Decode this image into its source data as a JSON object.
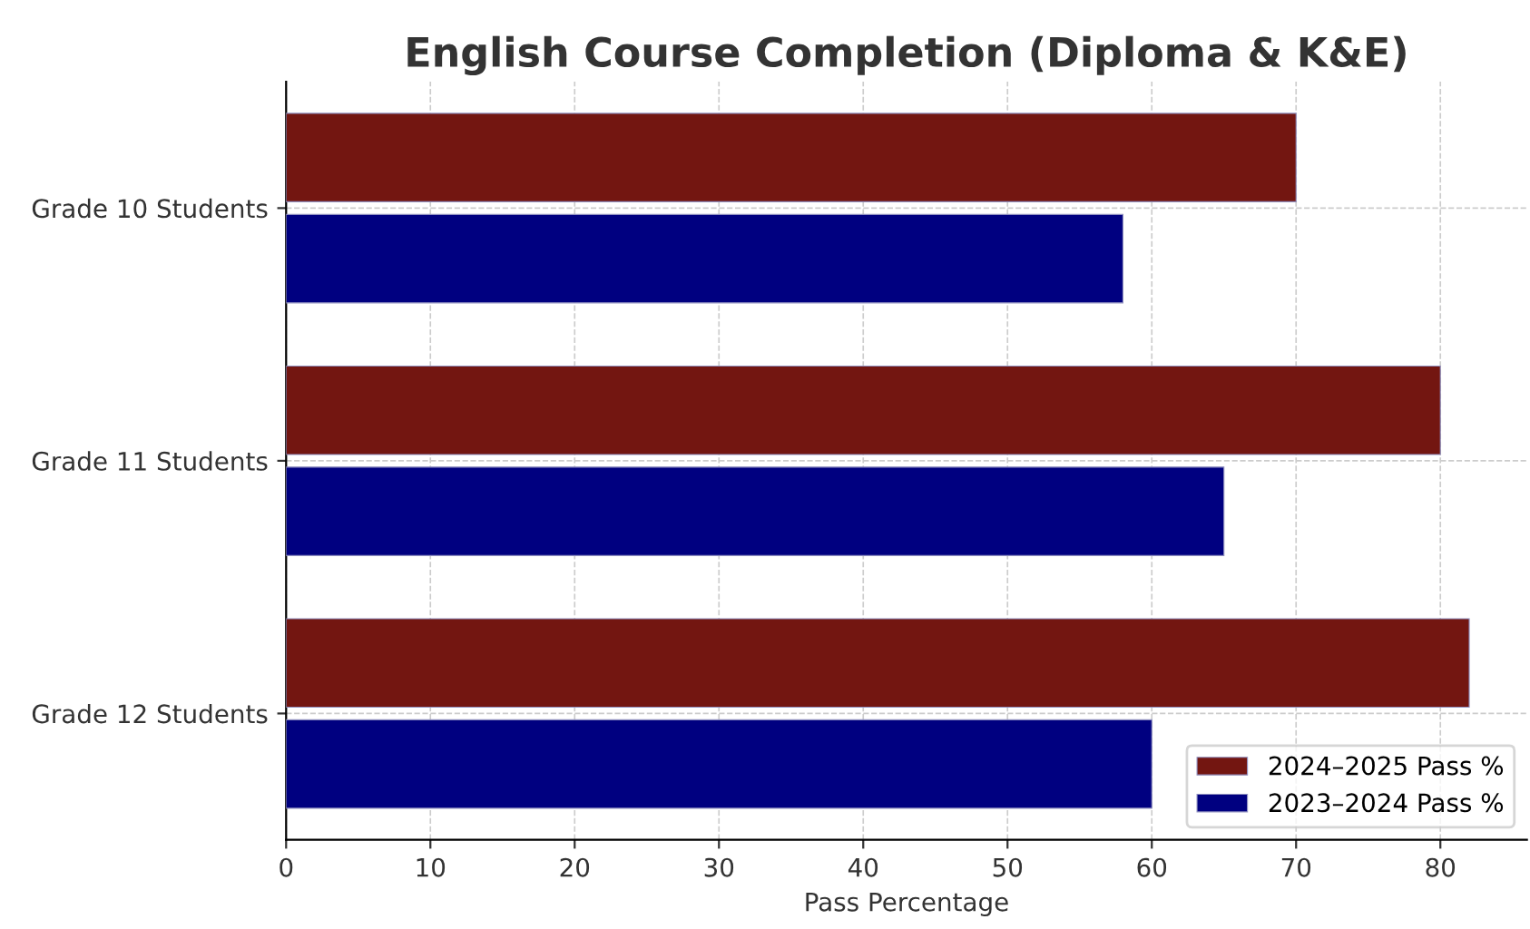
{
  "chart_data": {
    "type": "bar",
    "orientation": "horizontal",
    "title": "English Course Completion (Diploma & K&E)",
    "xlabel": "Pass Percentage",
    "categories": [
      "Grade 10 Students",
      "Grade 11 Students",
      "Grade 12 Students"
    ],
    "series": [
      {
        "name": "2024–2025 Pass %",
        "color": "#731611",
        "values": [
          70,
          80,
          82
        ]
      },
      {
        "name": "2023–2024 Pass %",
        "color": "#000080",
        "values": [
          58,
          65,
          60
        ]
      }
    ],
    "xlim": [
      0,
      86
    ],
    "xticks": [
      0,
      10,
      20,
      30,
      40,
      50,
      60,
      70,
      80
    ],
    "grid": true,
    "legend": "bottom right"
  }
}
